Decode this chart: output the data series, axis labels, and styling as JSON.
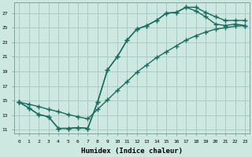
{
  "background_color": "#cce8e0",
  "grid_color": "#aaccc4",
  "line_color": "#1a6b60",
  "xlabel": "Humidex (Indice chaleur)",
  "xlim": [
    -0.5,
    23.5
  ],
  "ylim": [
    10.5,
    28.5
  ],
  "xticks": [
    0,
    1,
    2,
    3,
    4,
    5,
    6,
    7,
    8,
    9,
    10,
    11,
    12,
    13,
    14,
    15,
    16,
    17,
    18,
    19,
    20,
    21,
    22,
    23
  ],
  "yticks": [
    11,
    13,
    15,
    17,
    19,
    21,
    23,
    25,
    27
  ],
  "upper_x": [
    0,
    1,
    2,
    3,
    4,
    5,
    6,
    7,
    8,
    9,
    10,
    11,
    12,
    13,
    14,
    15,
    16,
    17,
    18,
    19,
    20,
    21,
    22,
    23
  ],
  "upper_y": [
    14.8,
    14.0,
    13.1,
    12.8,
    11.2,
    11.2,
    11.3,
    11.2,
    14.8,
    19.2,
    21.0,
    23.3,
    24.8,
    25.3,
    26.0,
    27.0,
    27.1,
    27.8,
    27.8,
    27.1,
    26.5,
    26.0,
    26.0,
    26.0
  ],
  "mid_x": [
    0,
    1,
    2,
    3,
    4,
    5,
    6,
    7,
    8,
    9,
    10,
    11,
    12,
    13,
    14,
    15,
    16,
    17,
    18,
    19,
    20,
    21,
    22,
    23
  ],
  "mid_y": [
    14.8,
    14.0,
    13.1,
    12.8,
    11.2,
    11.2,
    11.3,
    11.2,
    14.8,
    19.2,
    21.0,
    23.3,
    24.8,
    25.3,
    26.0,
    27.0,
    27.1,
    27.8,
    27.3,
    26.5,
    25.5,
    25.3,
    25.5,
    25.3
  ],
  "low_x": [
    0,
    1,
    2,
    3,
    4,
    5,
    6,
    7,
    8,
    9,
    10,
    11,
    12,
    13,
    14,
    15,
    16,
    17,
    18,
    19,
    20,
    21,
    22,
    23
  ],
  "low_y": [
    14.8,
    14.5,
    14.2,
    13.8,
    13.5,
    13.1,
    12.8,
    12.5,
    13.8,
    15.1,
    16.4,
    17.6,
    18.9,
    19.9,
    20.9,
    21.7,
    22.5,
    23.3,
    23.9,
    24.4,
    24.8,
    25.0,
    25.2,
    25.3
  ]
}
